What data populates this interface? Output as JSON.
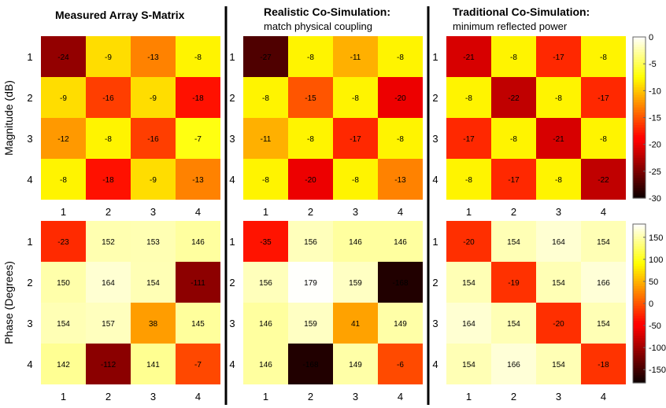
{
  "panels": [
    {
      "title": "Measured Array S-Matrix",
      "subtitle": ""
    },
    {
      "title": "Realistic Co-Simulation:",
      "subtitle": "match physical coupling"
    },
    {
      "title": "Traditional Co-Simulation:",
      "subtitle": "minimum  reflected power"
    }
  ],
  "row_labels": [
    "Magnitude (dB)",
    "Phase (Degrees)"
  ],
  "colormap": "hot",
  "chart_data": [
    {
      "type": "heatmap",
      "quantity": "magnitude",
      "panel": "Measured Array S-Matrix",
      "x": [
        "1",
        "2",
        "3",
        "4"
      ],
      "y": [
        "1",
        "2",
        "3",
        "4"
      ],
      "values": [
        [
          -24,
          -9,
          -13,
          -8
        ],
        [
          -9,
          -16,
          -9,
          -18
        ],
        [
          -12,
          -8,
          -16,
          -7
        ],
        [
          -8,
          -18,
          -9,
          -13
        ]
      ],
      "clim": [
        -30,
        0
      ]
    },
    {
      "type": "heatmap",
      "quantity": "magnitude",
      "panel": "Realistic Co-Simulation",
      "x": [
        "1",
        "2",
        "3",
        "4"
      ],
      "y": [
        "1",
        "2",
        "3",
        "4"
      ],
      "values": [
        [
          -27,
          -8,
          -11,
          -8
        ],
        [
          -8,
          -15,
          -8,
          -20
        ],
        [
          -11,
          -8,
          -17,
          -8
        ],
        [
          -8,
          -20,
          -8,
          -13
        ]
      ],
      "clim": [
        -30,
        0
      ]
    },
    {
      "type": "heatmap",
      "quantity": "magnitude",
      "panel": "Traditional Co-Simulation",
      "x": [
        "1",
        "2",
        "3",
        "4"
      ],
      "y": [
        "1",
        "2",
        "3",
        "4"
      ],
      "values": [
        [
          -21,
          -8,
          -17,
          -8
        ],
        [
          -8,
          -22,
          -8,
          -17
        ],
        [
          -17,
          -8,
          -21,
          -8
        ],
        [
          -8,
          -17,
          -8,
          -22
        ]
      ],
      "clim": [
        -30,
        0
      ],
      "colorbar_ticks": [
        "0",
        "-5",
        "-10",
        "-15",
        "-20",
        "-25",
        "-30"
      ]
    },
    {
      "type": "heatmap",
      "quantity": "phase",
      "panel": "Measured Array S-Matrix",
      "x": [
        "1",
        "2",
        "3",
        "4"
      ],
      "y": [
        "1",
        "2",
        "3",
        "4"
      ],
      "values": [
        [
          -23,
          152,
          153,
          146
        ],
        [
          150,
          164,
          154,
          -111
        ],
        [
          154,
          157,
          38,
          145
        ],
        [
          142,
          -112,
          141,
          -7
        ]
      ],
      "clim": [
        -180,
        180
      ]
    },
    {
      "type": "heatmap",
      "quantity": "phase",
      "panel": "Realistic Co-Simulation",
      "x": [
        "1",
        "2",
        "3",
        "4"
      ],
      "y": [
        "1",
        "2",
        "3",
        "4"
      ],
      "values": [
        [
          -35,
          156,
          146,
          146
        ],
        [
          156,
          179,
          159,
          -168
        ],
        [
          146,
          159,
          41,
          149
        ],
        [
          146,
          -168,
          149,
          -6
        ]
      ],
      "clim": [
        -180,
        180
      ]
    },
    {
      "type": "heatmap",
      "quantity": "phase",
      "panel": "Traditional Co-Simulation",
      "x": [
        "1",
        "2",
        "3",
        "4"
      ],
      "y": [
        "1",
        "2",
        "3",
        "4"
      ],
      "values": [
        [
          -20,
          154,
          164,
          154
        ],
        [
          154,
          -19,
          154,
          166
        ],
        [
          164,
          154,
          -20,
          154
        ],
        [
          154,
          166,
          154,
          -18
        ]
      ],
      "clim": [
        -180,
        180
      ],
      "colorbar_ticks": [
        "150",
        "100",
        "50",
        "0",
        "-50",
        "-100",
        "-150"
      ]
    }
  ]
}
